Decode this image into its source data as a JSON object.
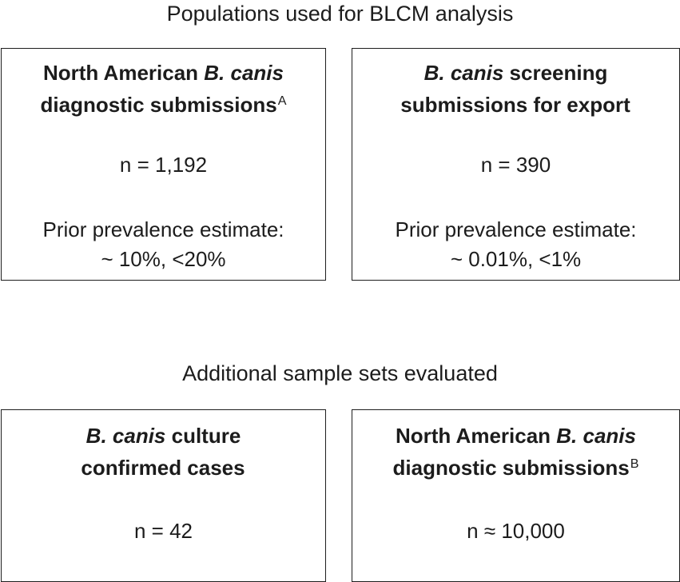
{
  "figure": {
    "main_heading": "Populations used for BLCM analysis",
    "secondary_heading": "Additional sample sets evaluated",
    "colors": {
      "background": "#ffffff",
      "text": "#1c1c1c",
      "box_border": "#1e1e1e"
    },
    "boxes": [
      {
        "id": "north-american-diagnostic-submissions-a",
        "title_line1_pre": "North American ",
        "title_line1_italic": "B. canis",
        "title_line1_post": "",
        "title_line2_text": "diagnostic submissions",
        "title_line2_sup": "A",
        "sample_size": "n = 1,192",
        "prior_label": "Prior prevalence estimate:",
        "prior_value": "~ 10%, <20%"
      },
      {
        "id": "b-canis-screening-submissions-for-export",
        "title_line1_pre": "",
        "title_line1_italic": "B. canis",
        "title_line1_post": " screening",
        "title_line2_text": "submissions for export",
        "title_line2_sup": "",
        "sample_size": "n = 390",
        "prior_label": "Prior prevalence estimate:",
        "prior_value": "~ 0.01%, <1%"
      },
      {
        "id": "b-canis-culture-confirmed-cases",
        "title_line1_pre": "",
        "title_line1_italic": "B. canis",
        "title_line1_post": " culture",
        "title_line2_text": "confirmed cases",
        "title_line2_sup": "",
        "sample_size": "n = 42"
      },
      {
        "id": "north-american-diagnostic-submissions-b",
        "title_line1_pre": "North American ",
        "title_line1_italic": "B. canis",
        "title_line1_post": "",
        "title_line2_text": "diagnostic submissions",
        "title_line2_sup": "B",
        "sample_size": "n ≈ 10,000"
      }
    ]
  }
}
